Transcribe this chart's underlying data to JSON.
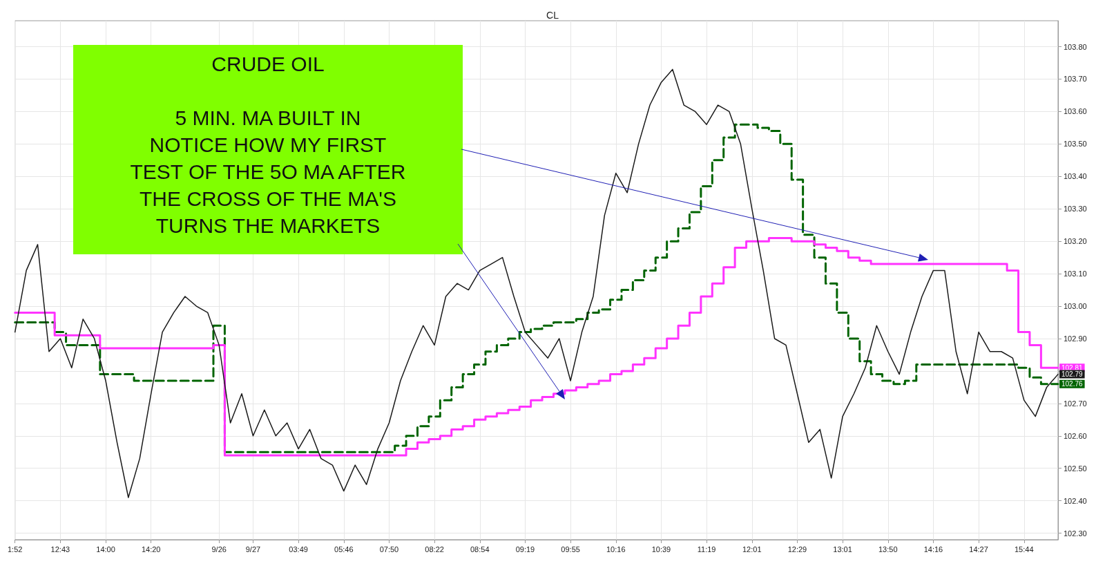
{
  "chart_data": {
    "type": "line",
    "title": "CL",
    "categories": [
      "1:52",
      null,
      null,
      null,
      "12:43",
      null,
      null,
      null,
      "14:00",
      null,
      null,
      null,
      "14:20",
      null,
      null,
      null,
      null,
      null,
      "9/26",
      null,
      null,
      "9/27",
      null,
      null,
      null,
      "03:49",
      null,
      null,
      null,
      "05:46",
      null,
      null,
      null,
      "07:50",
      null,
      null,
      null,
      "08:22",
      null,
      null,
      null,
      "08:54",
      null,
      null,
      null,
      "09:19",
      null,
      null,
      null,
      "09:55",
      null,
      null,
      null,
      "10:16",
      null,
      null,
      null,
      "10:39",
      null,
      null,
      null,
      "11:19",
      null,
      null,
      null,
      "12:01",
      null,
      null,
      null,
      "12:29",
      null,
      null,
      null,
      "13:01",
      null,
      null,
      null,
      "13:50",
      null,
      null,
      null,
      "14:16",
      null,
      null,
      null,
      "14:27",
      null,
      null,
      null,
      "15:44",
      null,
      null,
      null
    ],
    "series": [
      {
        "color": "#1a1a1a",
        "line_style": "solid",
        "values": [
          102.92,
          103.11,
          103.19,
          102.86,
          102.9,
          102.81,
          102.96,
          102.9,
          102.77,
          102.58,
          102.41,
          102.53,
          102.73,
          102.92,
          102.98,
          103.03,
          103.0,
          102.98,
          102.88,
          102.64,
          102.73,
          102.6,
          102.68,
          102.6,
          102.64,
          102.56,
          102.62,
          102.53,
          102.51,
          102.43,
          102.51,
          102.45,
          102.56,
          102.64,
          102.77,
          102.86,
          102.94,
          102.88,
          103.03,
          103.07,
          103.05,
          103.11,
          103.13,
          103.15,
          103.03,
          102.92,
          102.88,
          102.84,
          102.9,
          102.77,
          102.92,
          103.03,
          103.28,
          103.41,
          103.35,
          103.5,
          103.62,
          103.69,
          103.73,
          103.62,
          103.6,
          103.56,
          103.62,
          103.6,
          103.5,
          103.3,
          103.11,
          102.9,
          102.88,
          102.73,
          102.58,
          102.62,
          102.47,
          102.66,
          102.73,
          102.81,
          102.94,
          102.86,
          102.79,
          102.92,
          103.03,
          103.11,
          103.11,
          102.86,
          102.73,
          102.92,
          102.86,
          102.86,
          102.84,
          102.71,
          102.66,
          102.75,
          102.79
        ],
        "value_labels": [
          null,
          null,
          null,
          null,
          null,
          null,
          null,
          null,
          null,
          null,
          null,
          null,
          null,
          null,
          null,
          null,
          null,
          null,
          null,
          null,
          null,
          null,
          null,
          null,
          null,
          null,
          null,
          null,
          null,
          null,
          null,
          null,
          null,
          null,
          null,
          null,
          null,
          null,
          null,
          null,
          null,
          null,
          null,
          null,
          null,
          null,
          null,
          null,
          null,
          null,
          null,
          null,
          null,
          null,
          null,
          null,
          null,
          null,
          null,
          null,
          null,
          null,
          null,
          null,
          null,
          null,
          null,
          null,
          null,
          null,
          null,
          null,
          null,
          null,
          null,
          null,
          null,
          null,
          null,
          null,
          null,
          null,
          null,
          null,
          null,
          null,
          null,
          null,
          null,
          null,
          null,
          null,
          "102.79"
        ]
      },
      {
        "type": "step",
        "color": "#ff33ff",
        "line_style": "solid",
        "values": [
          102.98,
          102.98,
          102.98,
          102.98,
          102.91,
          102.91,
          102.91,
          102.91,
          102.87,
          102.87,
          102.87,
          102.87,
          102.87,
          102.87,
          102.87,
          102.87,
          102.87,
          102.87,
          102.88,
          102.54,
          102.54,
          102.54,
          102.54,
          102.54,
          102.54,
          102.54,
          102.54,
          102.54,
          102.54,
          102.54,
          102.54,
          102.54,
          102.54,
          102.54,
          102.54,
          102.56,
          102.58,
          102.59,
          102.6,
          102.62,
          102.63,
          102.65,
          102.66,
          102.67,
          102.68,
          102.69,
          102.71,
          102.72,
          102.73,
          102.74,
          102.75,
          102.76,
          102.77,
          102.79,
          102.8,
          102.82,
          102.84,
          102.87,
          102.9,
          102.94,
          102.98,
          103.03,
          103.07,
          103.12,
          103.18,
          103.2,
          103.2,
          103.21,
          103.21,
          103.2,
          103.2,
          103.19,
          103.18,
          103.17,
          103.15,
          103.14,
          103.13,
          103.13,
          103.13,
          103.13,
          103.13,
          103.13,
          103.13,
          103.13,
          103.13,
          103.13,
          103.13,
          103.13,
          103.11,
          102.92,
          102.88,
          102.81,
          102.81
        ],
        "value_labels": [
          null,
          null,
          null,
          null,
          null,
          null,
          null,
          null,
          null,
          null,
          null,
          null,
          null,
          null,
          null,
          null,
          null,
          null,
          null,
          null,
          null,
          null,
          null,
          null,
          null,
          null,
          null,
          null,
          null,
          null,
          null,
          null,
          null,
          null,
          null,
          null,
          null,
          null,
          null,
          null,
          null,
          null,
          null,
          null,
          null,
          null,
          null,
          null,
          null,
          null,
          null,
          null,
          null,
          null,
          null,
          null,
          null,
          null,
          null,
          null,
          null,
          null,
          null,
          null,
          null,
          null,
          null,
          null,
          null,
          null,
          null,
          null,
          null,
          null,
          null,
          null,
          null,
          null,
          null,
          null,
          null,
          null,
          null,
          null,
          null,
          null,
          null,
          null,
          null,
          null,
          null,
          null,
          "102.81"
        ]
      },
      {
        "type": "step",
        "color": "#006400",
        "line_style": "dashed",
        "values": [
          102.95,
          102.95,
          102.95,
          102.95,
          102.92,
          102.88,
          102.88,
          102.88,
          102.79,
          102.79,
          102.79,
          102.77,
          102.77,
          102.77,
          102.77,
          102.77,
          102.77,
          102.77,
          102.94,
          102.55,
          102.55,
          102.55,
          102.55,
          102.55,
          102.55,
          102.55,
          102.55,
          102.55,
          102.55,
          102.55,
          102.55,
          102.55,
          102.55,
          102.55,
          102.57,
          102.6,
          102.63,
          102.66,
          102.71,
          102.75,
          102.79,
          102.82,
          102.86,
          102.88,
          102.9,
          102.92,
          102.93,
          102.94,
          102.95,
          102.95,
          102.96,
          102.98,
          102.99,
          103.02,
          103.05,
          103.08,
          103.11,
          103.15,
          103.2,
          103.24,
          103.29,
          103.37,
          103.45,
          103.52,
          103.56,
          103.56,
          103.55,
          103.54,
          103.5,
          103.39,
          103.22,
          103.15,
          103.07,
          102.98,
          102.9,
          102.83,
          102.79,
          102.77,
          102.76,
          102.77,
          102.82,
          102.82,
          102.82,
          102.82,
          102.82,
          102.82,
          102.82,
          102.82,
          102.82,
          102.81,
          102.78,
          102.76,
          102.76
        ],
        "value_labels": [
          null,
          null,
          null,
          null,
          null,
          null,
          null,
          null,
          null,
          null,
          null,
          null,
          null,
          null,
          null,
          null,
          null,
          null,
          null,
          null,
          null,
          null,
          null,
          null,
          null,
          null,
          null,
          null,
          null,
          null,
          null,
          null,
          null,
          null,
          null,
          null,
          null,
          null,
          null,
          null,
          null,
          null,
          null,
          null,
          null,
          null,
          null,
          null,
          null,
          null,
          null,
          null,
          null,
          null,
          null,
          null,
          null,
          null,
          null,
          null,
          null,
          null,
          null,
          null,
          null,
          null,
          null,
          null,
          null,
          null,
          null,
          null,
          null,
          null,
          null,
          null,
          null,
          null,
          null,
          null,
          null,
          null,
          null,
          null,
          null,
          null,
          null,
          null,
          null,
          null,
          null,
          null,
          "102.76"
        ]
      }
    ],
    "ylim": [
      102.28,
      103.88
    ],
    "yticks": [
      {
        "value": 102.3,
        "label": "102.30"
      },
      {
        "value": 102.4,
        "label": "102.40"
      },
      {
        "value": 102.5,
        "label": "102.50"
      },
      {
        "value": 102.6,
        "label": "102.60"
      },
      {
        "value": 102.7,
        "label": "102.70"
      },
      {
        "value": 102.8,
        "label": null
      },
      {
        "value": 102.9,
        "label": "102.90"
      },
      {
        "value": 103.0,
        "label": "103.00"
      },
      {
        "value": 103.1,
        "label": "103.10"
      },
      {
        "value": 103.2,
        "label": "103.20"
      },
      {
        "value": 103.3,
        "label": "103.30"
      },
      {
        "value": 103.4,
        "label": "103.40"
      },
      {
        "value": 103.5,
        "label": "103.50"
      },
      {
        "value": 103.6,
        "label": "103.60"
      },
      {
        "value": 103.7,
        "label": "103.70"
      },
      {
        "value": 103.8,
        "label": "103.80"
      }
    ],
    "grid": true,
    "marker": "none",
    "annotations": [
      "CRUDE OIL\n\n5 MIN. MA BUILT IN\nNOTICE HOW MY FIRST\nTEST OF THE 5O MA AFTER\nTHE CROSS OF THE MA'S\nTURNS THE MARKETS"
    ]
  }
}
